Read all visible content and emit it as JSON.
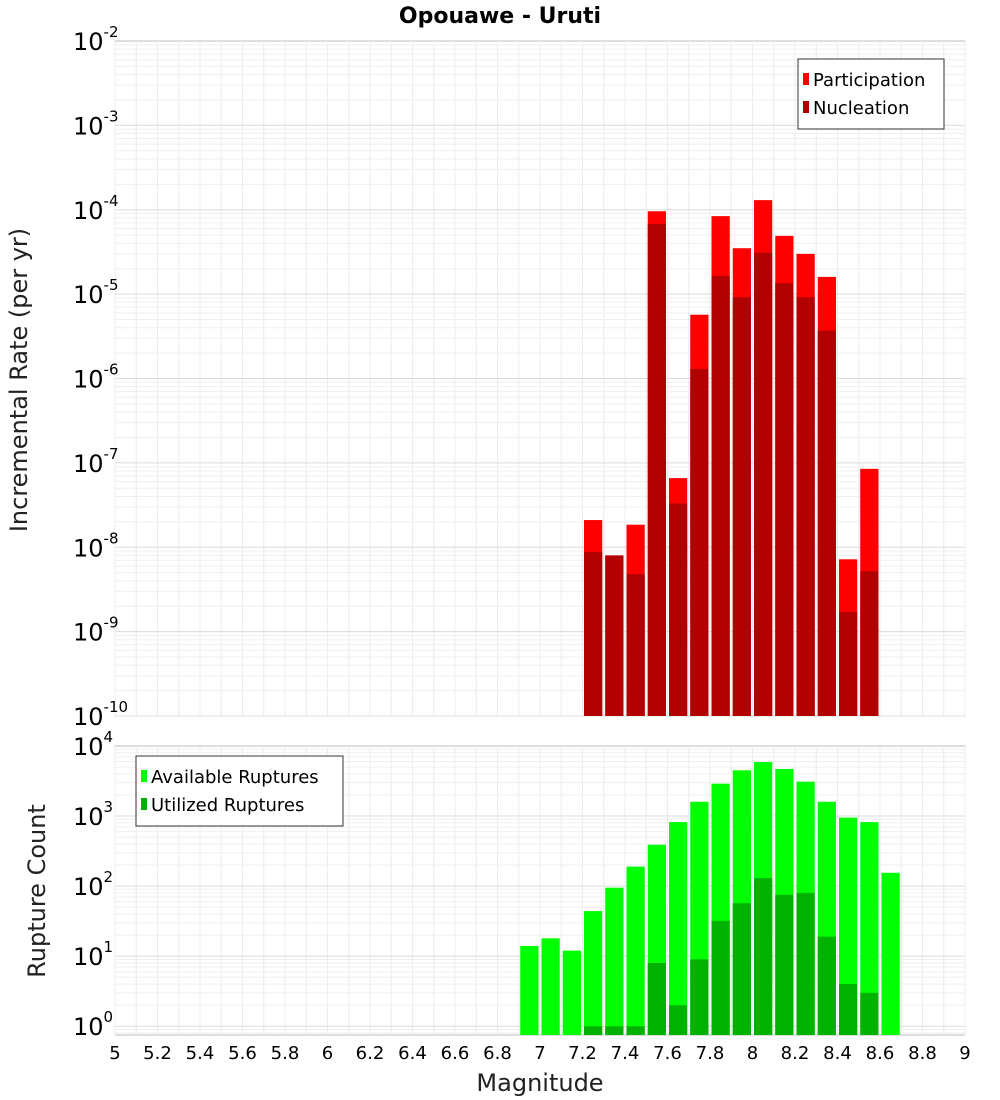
{
  "chart_data": [
    {
      "type": "bar",
      "title": "Opouawe - Uruti",
      "xlabel": "Magnitude",
      "ylabel": "Incremental Rate (per yr)",
      "xlim": [
        5,
        9
      ],
      "ylim": [
        1e-10,
        0.01
      ],
      "yscale": "log",
      "grid": true,
      "legend_position": "top-right",
      "bin_width": 0.1,
      "x": [
        7.25,
        7.35,
        7.45,
        7.55,
        7.65,
        7.75,
        7.85,
        7.95,
        8.05,
        8.15,
        8.25,
        8.35,
        8.45,
        8.55
      ],
      "series": [
        {
          "name": "Participation",
          "color": "#ff0000",
          "values": [
            2.1e-08,
            8e-09,
            1.85e-08,
            9.6e-05,
            6.6e-08,
            5.7e-06,
            8.4e-05,
            3.5e-05,
            0.00013,
            4.9e-05,
            3e-05,
            1.6e-05,
            7.2e-09,
            8.5e-08
          ]
        },
        {
          "name": "Nucleation",
          "color": "#b20000",
          "values": [
            8.8e-09,
            8e-09,
            4.8e-09,
            6.8e-05,
            3.3e-08,
            1.3e-06,
            1.65e-05,
            9.2e-06,
            3.1e-05,
            1.35e-05,
            9.2e-06,
            3.7e-06,
            1.7e-09,
            5.2e-09
          ]
        }
      ]
    },
    {
      "type": "bar",
      "title": "",
      "xlabel": "Magnitude",
      "ylabel": "Rupture Count",
      "xlim": [
        5,
        9
      ],
      "ylim": [
        0.75,
        10000.0
      ],
      "yscale": "log",
      "grid": true,
      "legend_position": "top-left",
      "bin_width": 0.1,
      "x": [
        6.95,
        7.05,
        7.15,
        7.25,
        7.35,
        7.45,
        7.55,
        7.65,
        7.75,
        7.85,
        7.95,
        8.05,
        8.15,
        8.25,
        8.35,
        8.45,
        8.55,
        8.65
      ],
      "series": [
        {
          "name": "Available Ruptures",
          "color": "#00ff00",
          "values": [
            14,
            18,
            12,
            44,
            95,
            190,
            390,
            820,
            1600,
            2900,
            4500,
            5900,
            4700,
            3100,
            1600,
            950,
            820,
            155
          ]
        },
        {
          "name": "Utilized Ruptures",
          "color": "#00b200",
          "values": [
            null,
            null,
            null,
            1,
            1,
            1,
            8,
            2,
            9,
            32,
            57,
            130,
            75,
            80,
            19,
            4,
            3,
            null
          ]
        }
      ]
    }
  ],
  "x_ticks": [
    "5",
    "5.2",
    "5.4",
    "5.6",
    "5.8",
    "6",
    "6.2",
    "6.4",
    "6.6",
    "6.8",
    "7",
    "7.2",
    "7.4",
    "7.6",
    "7.8",
    "8",
    "8.2",
    "8.4",
    "8.6",
    "8.8",
    "9"
  ],
  "top_y_ticks": [
    {
      "base": "10",
      "exp": "-2"
    },
    {
      "base": "10",
      "exp": "-3"
    },
    {
      "base": "10",
      "exp": "-4"
    },
    {
      "base": "10",
      "exp": "-5"
    },
    {
      "base": "10",
      "exp": "-6"
    },
    {
      "base": "10",
      "exp": "-7"
    },
    {
      "base": "10",
      "exp": "-8"
    },
    {
      "base": "10",
      "exp": "-9"
    },
    {
      "base": "10",
      "exp": "-10"
    }
  ],
  "bottom_y_ticks": [
    {
      "base": "10",
      "exp": "4"
    },
    {
      "base": "10",
      "exp": "3"
    },
    {
      "base": "10",
      "exp": "2"
    },
    {
      "base": "10",
      "exp": "1"
    },
    {
      "base": "10",
      "exp": "0"
    }
  ]
}
